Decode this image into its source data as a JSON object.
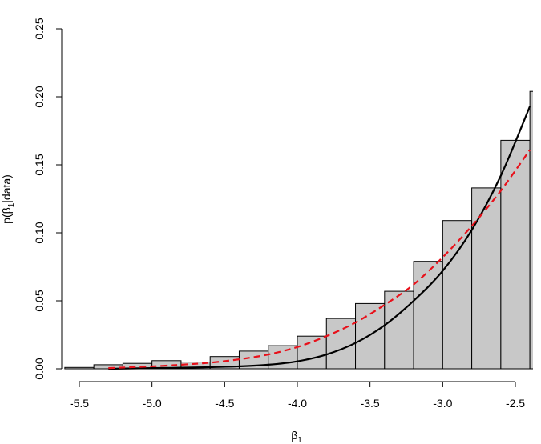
{
  "chart_data": {
    "type": "bar",
    "xlabel": {
      "base": "β",
      "sub": "1"
    },
    "ylabel": {
      "pre": "p(β",
      "sub": "1",
      "post": "|data)"
    },
    "xlim": [
      -5.5,
      -2.4
    ],
    "ylim": [
      0,
      0.25
    ],
    "xticks": [
      {
        "value": -5.5,
        "label": "-5.5"
      },
      {
        "value": -5.0,
        "label": "-5.0"
      },
      {
        "value": -4.5,
        "label": "-4.5"
      },
      {
        "value": -4.0,
        "label": "-4.0"
      },
      {
        "value": -3.5,
        "label": "-3.5"
      },
      {
        "value": -3.0,
        "label": "-3.0"
      },
      {
        "value": -2.5,
        "label": "-2.5"
      }
    ],
    "yticks": [
      {
        "value": 0.0,
        "label": "0.00"
      },
      {
        "value": 0.05,
        "label": "0.05"
      },
      {
        "value": 0.1,
        "label": "0.10"
      },
      {
        "value": 0.15,
        "label": "0.15"
      },
      {
        "value": 0.2,
        "label": "0.20"
      },
      {
        "value": 0.25,
        "label": "0.25"
      }
    ],
    "grid": false,
    "histogram": {
      "fill": "#c8c8c8",
      "edge": "#000000",
      "bins": [
        {
          "x0": -5.6,
          "x1": -5.4,
          "density": 0.001
        },
        {
          "x0": -5.4,
          "x1": -5.2,
          "density": 0.003
        },
        {
          "x0": -5.2,
          "x1": -5.0,
          "density": 0.004
        },
        {
          "x0": -5.0,
          "x1": -4.8,
          "density": 0.006
        },
        {
          "x0": -4.8,
          "x1": -4.6,
          "density": 0.005
        },
        {
          "x0": -4.6,
          "x1": -4.4,
          "density": 0.009
        },
        {
          "x0": -4.4,
          "x1": -4.2,
          "density": 0.013
        },
        {
          "x0": -4.2,
          "x1": -4.0,
          "density": 0.017
        },
        {
          "x0": -4.0,
          "x1": -3.8,
          "density": 0.024
        },
        {
          "x0": -3.8,
          "x1": -3.6,
          "density": 0.037
        },
        {
          "x0": -3.6,
          "x1": -3.4,
          "density": 0.048
        },
        {
          "x0": -3.4,
          "x1": -3.2,
          "density": 0.057
        },
        {
          "x0": -3.2,
          "x1": -3.0,
          "density": 0.079
        },
        {
          "x0": -3.0,
          "x1": -2.8,
          "density": 0.109
        },
        {
          "x0": -2.8,
          "x1": -2.6,
          "density": 0.133
        },
        {
          "x0": -2.6,
          "x1": -2.4,
          "density": 0.168
        },
        {
          "x0": -2.4,
          "x1": -2.2,
          "density": 0.204
        }
      ]
    },
    "series": [
      {
        "style": "solid",
        "color": "#000000",
        "x": [
          -5.3,
          -5.0,
          -4.8,
          -4.6,
          -4.4,
          -4.2,
          -4.0,
          -3.8,
          -3.6,
          -3.4,
          -3.2,
          -3.0,
          -2.8,
          -2.6,
          -2.4
        ],
        "y": [
          0.0,
          0.0005,
          0.0008,
          0.0012,
          0.0018,
          0.003,
          0.0055,
          0.0105,
          0.019,
          0.032,
          0.05,
          0.072,
          0.102,
          0.142,
          0.193
        ]
      },
      {
        "style": "dashed",
        "color": "#e8101a",
        "x": [
          -5.3,
          -5.0,
          -4.8,
          -4.6,
          -4.4,
          -4.2,
          -4.0,
          -3.8,
          -3.6,
          -3.4,
          -3.2,
          -3.0,
          -2.8,
          -2.6,
          -2.4
        ],
        "y": [
          0.0005,
          0.0018,
          0.003,
          0.0045,
          0.007,
          0.0105,
          0.016,
          0.024,
          0.034,
          0.047,
          0.062,
          0.082,
          0.105,
          0.131,
          0.161
        ]
      }
    ]
  }
}
